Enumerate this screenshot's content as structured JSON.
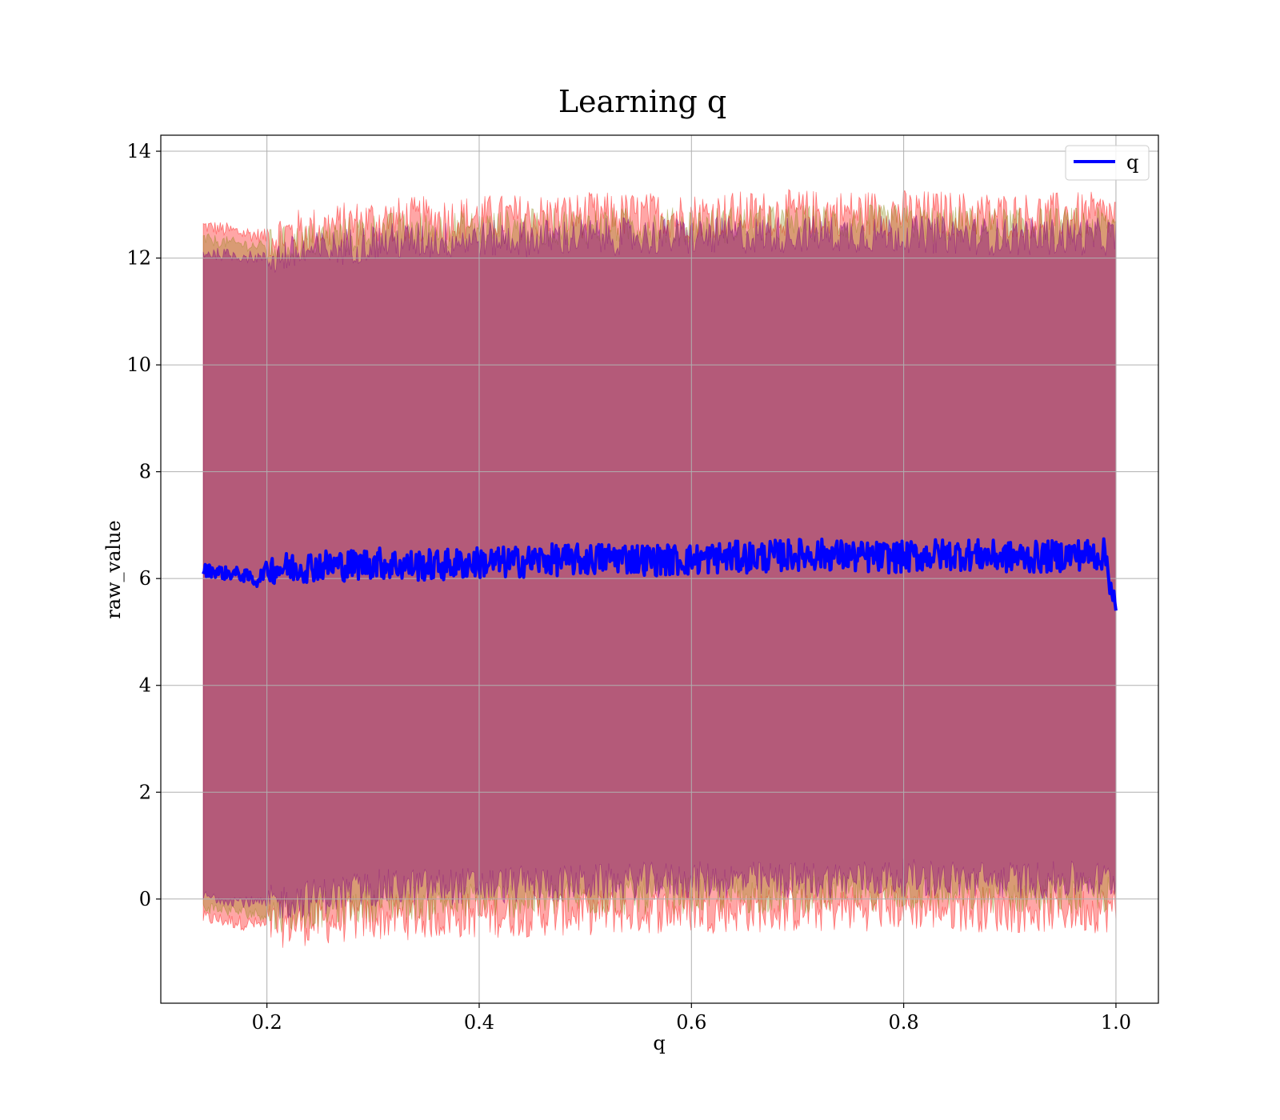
{
  "chart_data": {
    "type": "line",
    "title": "Learning q",
    "xlabel": "q",
    "ylabel": "raw_value",
    "xlim": [
      0.1,
      1.04
    ],
    "ylim": [
      -1.95,
      14.3
    ],
    "x_ticks": [
      0.2,
      0.4,
      0.6,
      0.8,
      1.0
    ],
    "x_tick_labels": [
      "0.2",
      "0.4",
      "0.6",
      "0.8",
      "1.0"
    ],
    "y_ticks": [
      0,
      2,
      4,
      6,
      8,
      10,
      12,
      14
    ],
    "y_tick_labels": [
      "0",
      "2",
      "4",
      "6",
      "8",
      "10",
      "12",
      "14"
    ],
    "grid": true,
    "legend": {
      "position": "top-right",
      "entries": [
        "q"
      ]
    },
    "colors": {
      "line": "#0000ff",
      "outer_band": "#ff0000",
      "inner_band": "#800080",
      "middle_band": "#808000"
    },
    "x_range": [
      0.14,
      1.0
    ],
    "series": [
      {
        "name": "q",
        "type": "line",
        "x": [
          0.14,
          0.15,
          0.16,
          0.17,
          0.18,
          0.19,
          0.2,
          0.22,
          0.25,
          0.28,
          0.3,
          0.33,
          0.36,
          0.4,
          0.43,
          0.46,
          0.5,
          0.53,
          0.56,
          0.6,
          0.63,
          0.66,
          0.7,
          0.73,
          0.76,
          0.8,
          0.83,
          0.86,
          0.9,
          0.93,
          0.96,
          0.99,
          1.0
        ],
        "y": [
          6.15,
          6.15,
          6.1,
          6.1,
          6.05,
          5.95,
          6.2,
          6.2,
          6.25,
          6.25,
          6.3,
          6.25,
          6.25,
          6.3,
          6.3,
          6.35,
          6.35,
          6.4,
          6.35,
          6.35,
          6.4,
          6.4,
          6.45,
          6.45,
          6.4,
          6.4,
          6.45,
          6.45,
          6.4,
          6.4,
          6.45,
          6.45,
          5.4
        ]
      }
    ],
    "bands": [
      {
        "color": "red",
        "x": [
          0.14,
          0.2,
          0.3,
          0.4,
          0.5,
          0.6,
          0.7,
          0.8,
          0.9,
          1.0
        ],
        "upper": [
          12.6,
          12.4,
          12.7,
          12.75,
          12.8,
          12.8,
          12.85,
          12.85,
          12.8,
          12.8
        ],
        "lower": [
          -0.35,
          -0.5,
          -0.35,
          -0.3,
          -0.25,
          -0.2,
          -0.2,
          -0.15,
          -0.2,
          -0.2
        ]
      },
      {
        "color": "purple",
        "x": [
          0.14,
          0.2,
          0.3,
          0.4,
          0.5,
          0.6,
          0.7,
          0.8,
          0.9,
          1.0
        ],
        "upper": [
          12.1,
          12.0,
          12.3,
          12.35,
          12.4,
          12.4,
          12.45,
          12.45,
          12.4,
          12.4
        ],
        "lower": [
          0.05,
          -0.1,
          0.2,
          0.25,
          0.3,
          0.35,
          0.35,
          0.4,
          0.35,
          0.35
        ]
      }
    ]
  }
}
